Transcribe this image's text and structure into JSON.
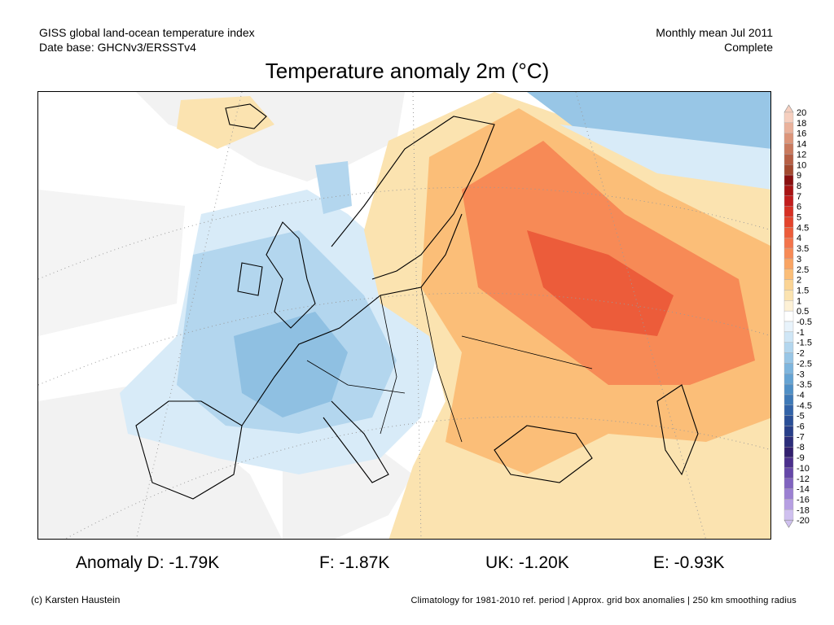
{
  "header": {
    "left_line1": "GISS global land-ocean temperature index",
    "left_line2": "Date base: GHCNv3/ERSSTv4",
    "right_line1": "Monthly mean Jul 2011",
    "right_line2": "Complete"
  },
  "title": "Temperature anomaly 2m (°C)",
  "colorbar": {
    "labels": [
      "20",
      "18",
      "16",
      "14",
      "12",
      "10",
      "9",
      "8",
      "7",
      "6",
      "5",
      "4.5",
      "4",
      "3.5",
      "3",
      "2.5",
      "2",
      "1.5",
      "1",
      "0.5",
      "-0.5",
      "-1",
      "-1.5",
      "-2",
      "-2.5",
      "-3",
      "-3.5",
      "-4",
      "-4.5",
      "-5",
      "-6",
      "-7",
      "-8",
      "-9",
      "-10",
      "-12",
      "-14",
      "-16",
      "-18",
      "-20"
    ],
    "colors": [
      "#f6cfbf",
      "#eab29c",
      "#dc957a",
      "#c9795d",
      "#b65f45",
      "#a3492f",
      "#8a1010",
      "#a81414",
      "#c21d1d",
      "#d63024",
      "#e3442c",
      "#ec5c3a",
      "#f3744b",
      "#f78a56",
      "#f9a463",
      "#fbbe78",
      "#fbd494",
      "#fbe3b0",
      "#fdf1d6",
      "#ffffff",
      "#e8f3fb",
      "#cfe6f6",
      "#b3d6ee",
      "#98c6e6",
      "#7eb5dd",
      "#65a3d3",
      "#4f8fc6",
      "#3e79b7",
      "#3263a8",
      "#2a4f97",
      "#283f89",
      "#2c2d7a",
      "#32206f",
      "#4b2f8c",
      "#6547a8",
      "#8063bf",
      "#9b80d2",
      "#b69fe2",
      "#cfc0ef"
    ]
  },
  "stats": {
    "d": "Anomaly D: -1.79K",
    "f": "F: -1.87K",
    "uk": "UK: -1.20K",
    "e": "E: -0.93K"
  },
  "footer": {
    "credit": "(c) Karsten Haustein",
    "note": "Climatology for 1981-2010 ref. period | Approx. grid box anomalies | 250 km smoothing radius"
  },
  "map_colors": {
    "no_data": "#f2f2f2",
    "warm_light": "#fbe3b0",
    "warm_mid": "#fbbe78",
    "warm_strong": "#f78a56",
    "warm_peak": "#ec5c3a",
    "cool_light": "#d8ebf8",
    "cool_mid": "#b3d6ee",
    "cool_strong": "#8fc0e2"
  }
}
